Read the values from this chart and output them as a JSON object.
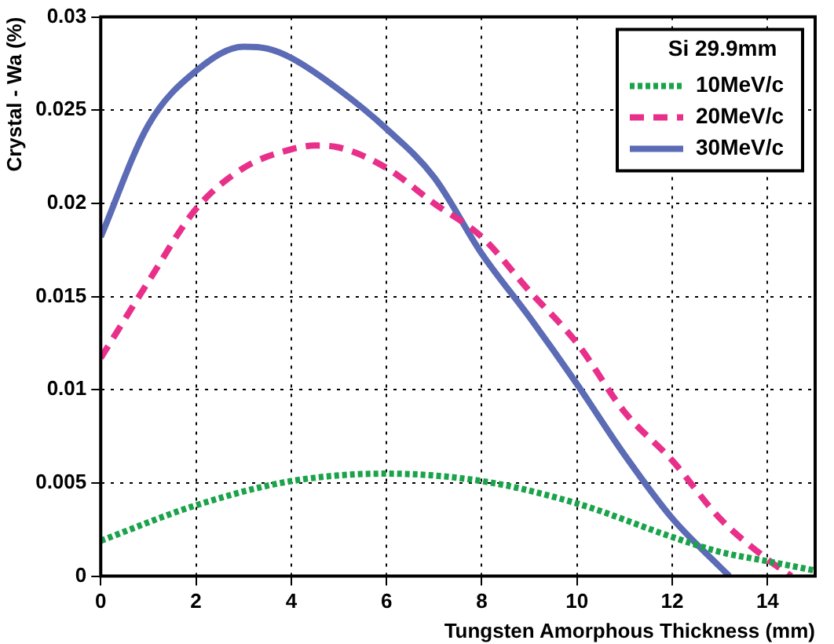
{
  "chart_data": {
    "type": "line",
    "xlabel": "Tungsten Amorphous Thickness (mm)",
    "ylabel": "Crystal - Wa (%)",
    "legend_title": "Si 29.9mm",
    "legend": "top right",
    "grid": true,
    "marker": "none",
    "xlim": [
      0,
      15
    ],
    "xticks": [
      0,
      2,
      4,
      6,
      8,
      10,
      12,
      14
    ],
    "ylim": [
      0,
      0.03
    ],
    "yticks": [
      0,
      0.005,
      0.01,
      0.015,
      0.02,
      0.025,
      0.03
    ],
    "series": [
      {
        "name": "10MeV/c",
        "color": "#1aa34a",
        "line_style": "dotted",
        "x": [
          0,
          2,
          4,
          6,
          8,
          10,
          12,
          13,
          14,
          15
        ],
        "values": [
          0.0019,
          0.0038,
          0.0051,
          0.0055,
          0.0051,
          0.0039,
          0.0021,
          0.0013,
          0.0008,
          0.0003
        ]
      },
      {
        "name": "20MeV/c",
        "color": "#e8308a",
        "line_style": "dashed",
        "x": [
          0,
          1,
          2,
          3,
          4,
          4.5,
          5,
          6,
          7,
          8,
          9,
          10,
          11,
          12,
          13,
          14,
          14.5
        ],
        "values": [
          0.0117,
          0.0158,
          0.0197,
          0.0219,
          0.0229,
          0.0231,
          0.023,
          0.0219,
          0.02,
          0.0182,
          0.0153,
          0.0125,
          0.0088,
          0.0062,
          0.0031,
          0.0009,
          0
        ]
      },
      {
        "name": "30MeV/c",
        "color": "#5b6bb5",
        "line_style": "solid",
        "x": [
          0,
          1,
          2,
          3,
          3.5,
          4,
          5,
          6,
          7,
          8,
          9,
          10,
          11,
          12,
          13,
          13.2
        ],
        "values": [
          0.0182,
          0.0242,
          0.0271,
          0.0284,
          0.0283,
          0.0278,
          0.0261,
          0.024,
          0.0214,
          0.0173,
          0.0139,
          0.0103,
          0.0065,
          0.0031,
          0.0005,
          0
        ]
      }
    ]
  }
}
